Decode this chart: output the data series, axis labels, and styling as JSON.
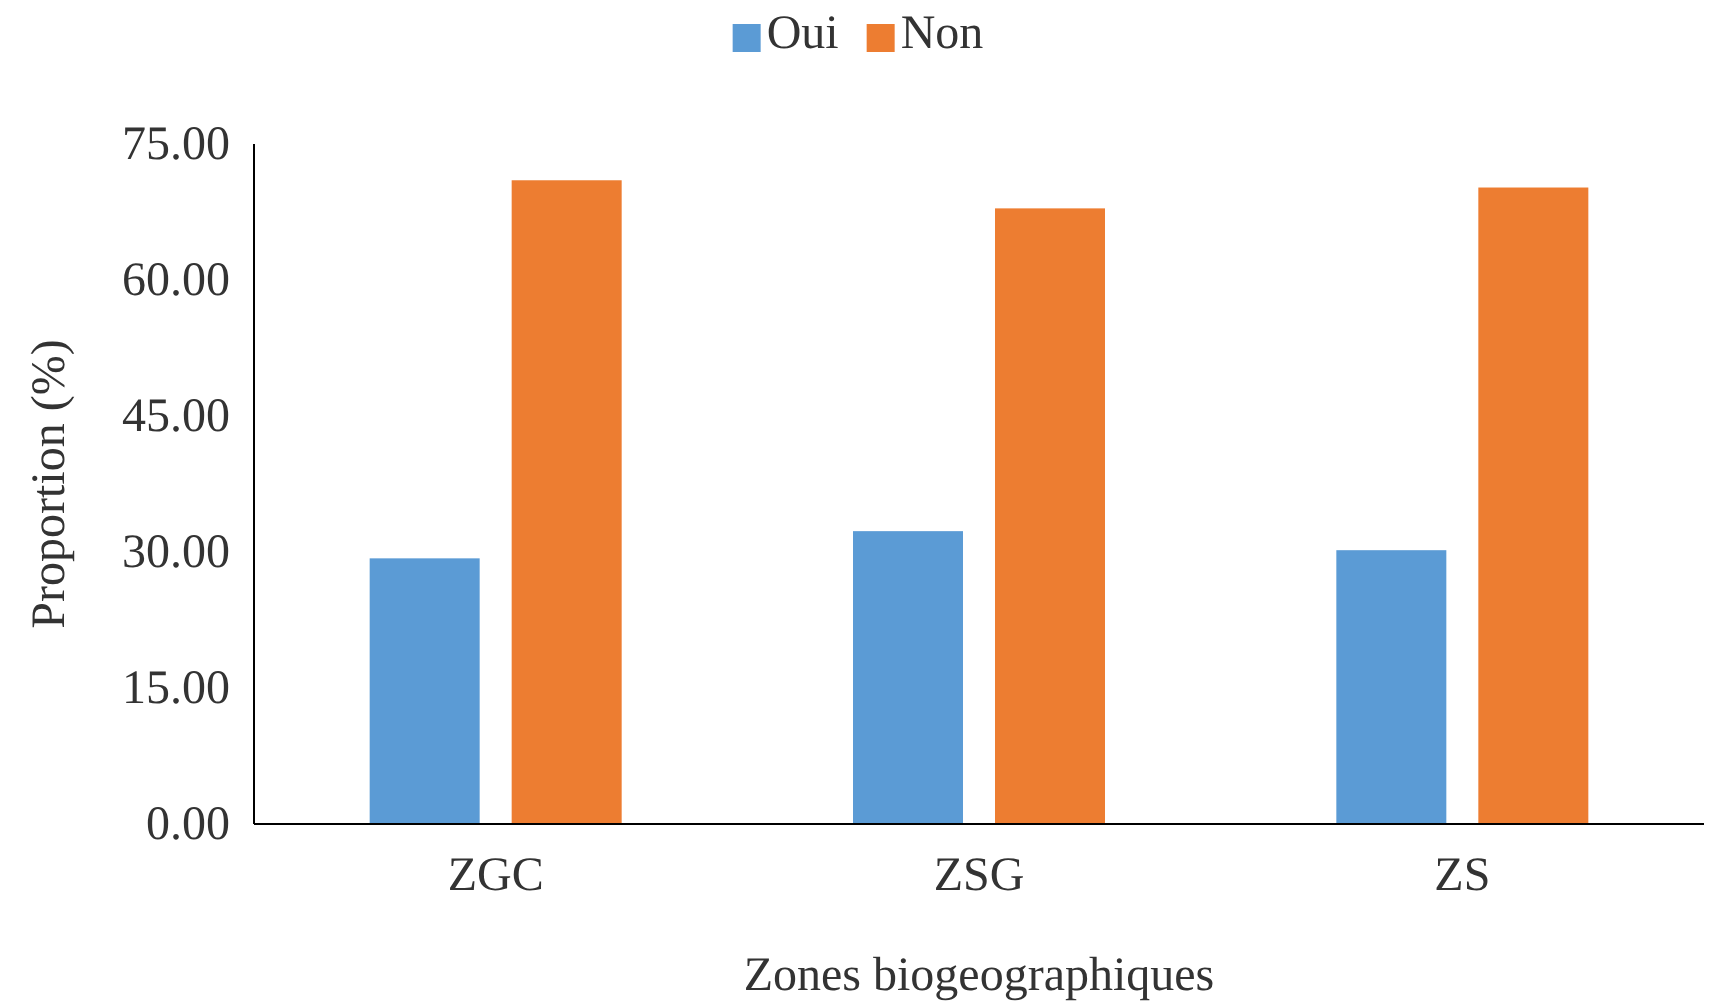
{
  "chart_data": {
    "type": "bar",
    "xlabel": "Zones biogeographiques",
    "ylabel": "Proportion (%)",
    "categories": [
      "ZGC",
      "ZSG",
      "ZS"
    ],
    "series": [
      {
        "name": "Oui",
        "color": "#5b9bd5",
        "values": [
          29.3,
          32.3,
          30.2
        ]
      },
      {
        "name": "Non",
        "color": "#ed7d31",
        "values": [
          71.0,
          67.9,
          70.2
        ]
      }
    ],
    "ylim": [
      0,
      75
    ],
    "yticks": [
      {
        "value": 0,
        "label": "0.00"
      },
      {
        "value": 15,
        "label": "15.00"
      },
      {
        "value": 30,
        "label": "30.00"
      },
      {
        "value": 45,
        "label": "45.00"
      },
      {
        "value": 60,
        "label": "60.00"
      },
      {
        "value": 75,
        "label": "75.00"
      }
    ],
    "grid": false,
    "legend": "top"
  }
}
